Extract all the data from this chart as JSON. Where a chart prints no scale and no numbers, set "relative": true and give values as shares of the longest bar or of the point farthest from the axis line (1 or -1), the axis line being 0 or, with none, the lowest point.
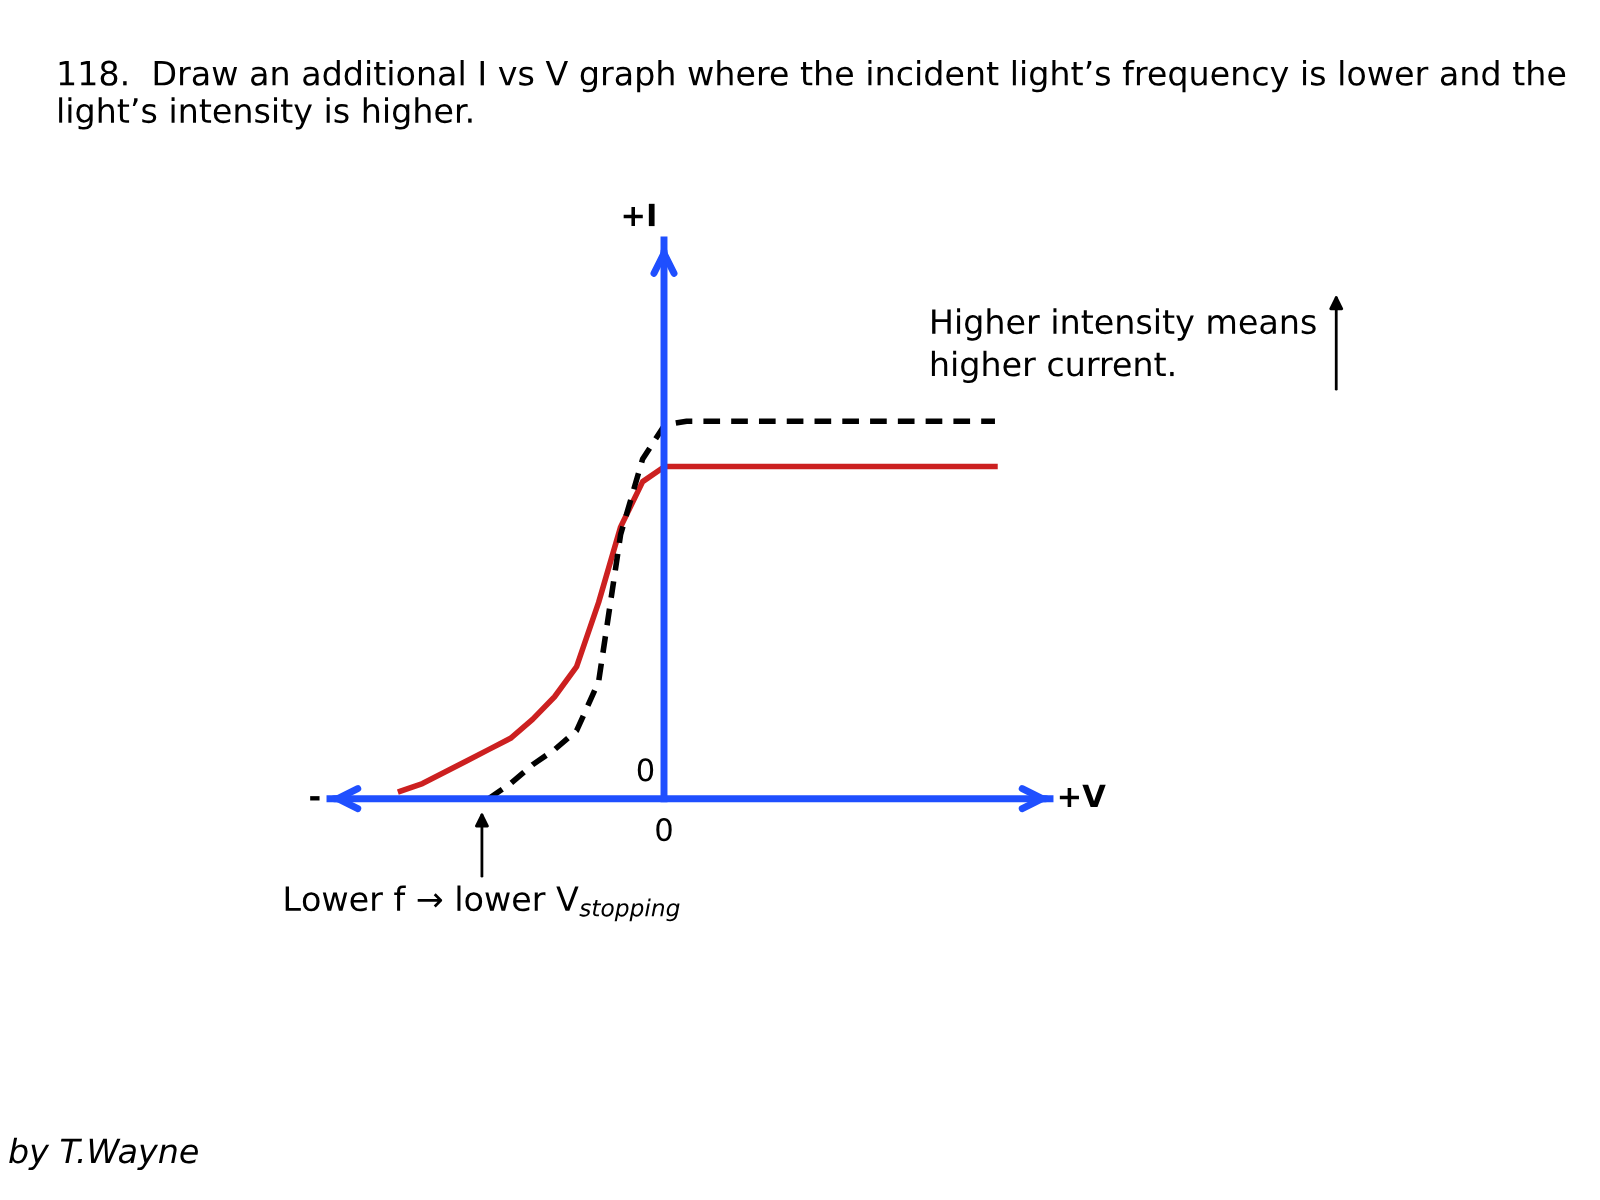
{
  "chart_data": {
    "type": "line",
    "relative": true,
    "title": "118.  Draw an additional I vs V graph where the incident light’s frequency is lower and the light’s intensity is higher.",
    "xlabel": "+V",
    "categories": [
      null,
      null,
      null,
      null,
      null,
      null,
      null,
      null,
      null,
      null,
      null,
      null,
      null,
      null,
      null,
      null,
      null,
      null,
      null,
      null,
      null,
      null,
      null,
      null,
      null,
      null,
      null,
      null
    ],
    "series": [
      {
        "color": "#cc2020",
        "line_style": "solid",
        "values": [
          0.02,
          0.04,
          0.07,
          0.1,
          0.13,
          0.16,
          0.21,
          0.27,
          0.35,
          0.52,
          0.72,
          0.84,
          0.88,
          0.88,
          0.88,
          0.88,
          0.88,
          0.88,
          0.88,
          0.88,
          0.88,
          0.88,
          0.88,
          0.88,
          0.88,
          0.88,
          0.88,
          0.88
        ]
      },
      {
        "color": "#000000",
        "line_style": "dashed",
        "values": [
          null,
          null,
          null,
          null,
          0,
          0.04,
          0.09,
          0.13,
          0.18,
          0.31,
          0.7,
          0.9,
          0.99,
          1,
          1,
          1,
          1,
          1,
          1,
          1,
          1,
          1,
          1,
          1,
          1,
          1,
          1,
          1
        ]
      }
    ],
    "annotations": [
      "+I",
      "0",
      "0",
      "-",
      "Higher intensity means\nhigher current.",
      "Lower f → lower V$_{stopping}$",
      "by T.Wayne"
    ],
    "legend": false,
    "marker": "none"
  }
}
